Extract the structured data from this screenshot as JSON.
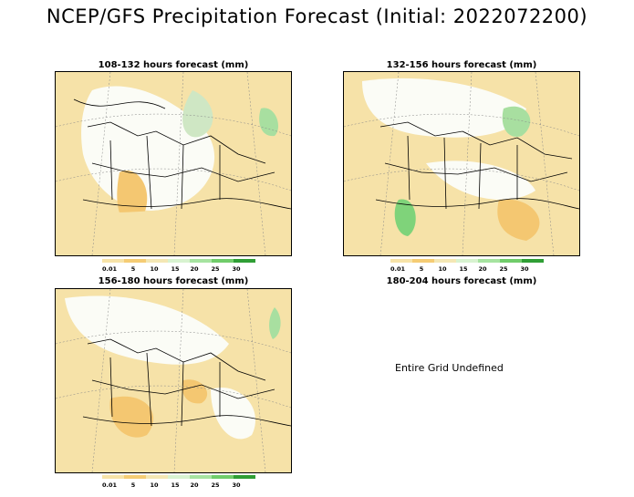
{
  "title": "NCEP/GFS Precipitation Forecast (Initial: 2022072200)",
  "panels": [
    {
      "title": "108-132 hours forecast (mm)"
    },
    {
      "title": "132-156 hours forecast (mm)"
    },
    {
      "title": "156-180 hours forecast (mm)"
    },
    {
      "title": "180-204 hours forecast (mm)",
      "message": "Entire Grid Undefined"
    }
  ],
  "colorbar": {
    "labels": [
      "0.01",
      "5",
      "10",
      "15",
      "20",
      "25",
      "30"
    ],
    "colors": [
      "#f7e3a8",
      "#f5cc74",
      "#f4e7b4",
      "#d8f3d0",
      "#a6e3a0",
      "#70cc6a",
      "#2f9e35"
    ]
  }
}
